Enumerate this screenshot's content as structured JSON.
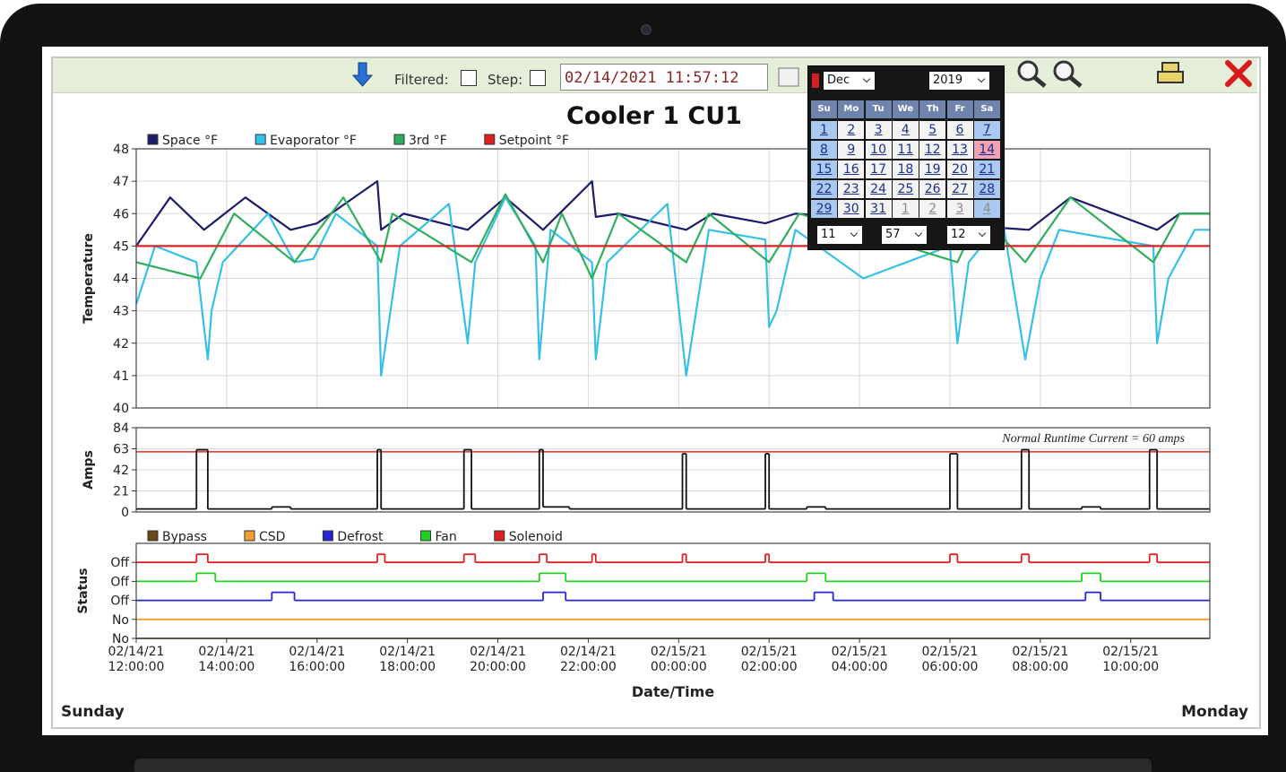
{
  "toolbar": {
    "filtered_label": "Filtered:",
    "step_label": "Step:",
    "datetime": "02/14/2021 11:57:12"
  },
  "calendar": {
    "month": "Dec",
    "year": "2019",
    "weekdays": [
      "Su",
      "Mo",
      "Tu",
      "We",
      "Th",
      "Fr",
      "Sa"
    ],
    "days": [
      [
        1,
        2,
        3,
        4,
        5,
        6,
        7
      ],
      [
        8,
        9,
        10,
        11,
        12,
        13,
        14
      ],
      [
        15,
        16,
        17,
        18,
        19,
        20,
        21
      ],
      [
        22,
        23,
        24,
        25,
        26,
        27,
        28
      ],
      [
        29,
        30,
        31,
        1,
        2,
        3,
        4
      ]
    ],
    "hour": "11",
    "minute": "57",
    "second": "12"
  },
  "chart_data": [
    {
      "type": "line",
      "title": "Cooler 1 CU1",
      "y_label": "Temperature",
      "ylim": [
        40,
        48
      ],
      "yticks": [
        40,
        41,
        42,
        43,
        44,
        45,
        46,
        47,
        48
      ],
      "grid": true,
      "xgrid": true,
      "legend": "top-left",
      "series": [
        {
          "name": "Space °F",
          "color": "#1c1c6b",
          "x": [
            "02/14/21 12:00:00",
            "02/14/21 12:45:00",
            "02/14/21 13:30:00",
            "02/14/21 14:25:00",
            "02/14/21 15:25:00",
            "02/14/21 16:00:00",
            "02/14/21 17:20:00",
            "02/14/21 17:25:00",
            "02/14/21 17:55:00",
            "02/14/21 19:20:00",
            "02/14/21 20:10:00",
            "02/14/21 21:00:00",
            "02/14/21 22:05:00",
            "02/14/21 22:10:00",
            "02/14/21 22:40:00",
            "02/15/21 00:10:00",
            "02/15/21 00:45:00",
            "02/15/21 01:55:00",
            "02/15/21 02:35:00",
            "02/15/21 07:45:00",
            "02/15/21 08:40:00",
            "02/15/21 10:35:00",
            "02/15/21 11:05:00",
            "02/15/21 11:45:00"
          ],
          "values": [
            45,
            46.5,
            45.5,
            46.5,
            45.5,
            45.7,
            47,
            45.5,
            46,
            45.5,
            46.5,
            45.5,
            47,
            45.9,
            46,
            45.5,
            46,
            45.7,
            46,
            45.5,
            46.5,
            45.5,
            46,
            46
          ]
        },
        {
          "name": "Evaporator °F",
          "color": "#35c0e8",
          "x": [
            "02/14/21 12:00:00",
            "02/14/21 12:25:00",
            "02/14/21 13:20:00",
            "02/14/21 13:35:00",
            "02/14/21 13:40:00",
            "02/14/21 13:55:00",
            "02/14/21 14:55:00",
            "02/14/21 15:30:00",
            "02/14/21 15:55:00",
            "02/14/21 16:25:00",
            "02/14/21 17:20:00",
            "02/14/21 17:25:00",
            "02/14/21 17:50:00",
            "02/14/21 18:55:00",
            "02/14/21 19:20:00",
            "02/14/21 19:30:00",
            "02/14/21 20:10:00",
            "02/14/21 20:50:00",
            "02/14/21 20:55:00",
            "02/14/21 21:10:00",
            "02/14/21 22:05:00",
            "02/14/21 22:10:00",
            "02/14/21 22:25:00",
            "02/14/21 23:45:00",
            "02/15/21 00:10:00",
            "02/15/21 00:40:00",
            "02/15/21 01:55:00",
            "02/15/21 02:00:00",
            "02/15/21 02:10:00",
            "02/15/21 02:35:00",
            "02/15/21 04:05:00",
            "02/15/21 06:00:00",
            "02/15/21 06:10:00",
            "02/15/21 06:25:00",
            "02/15/21 07:10:00",
            "02/15/21 07:40:00",
            "02/15/21 08:00:00",
            "02/15/21 08:25:00",
            "02/15/21 10:30:00",
            "02/15/21 10:35:00",
            "02/15/21 10:50:00",
            "02/15/21 11:25:00",
            "02/15/21 11:45:00"
          ],
          "values": [
            43.2,
            45,
            44.5,
            41.5,
            43,
            44.5,
            46,
            44.5,
            44.6,
            46,
            45,
            41,
            45,
            46.3,
            42,
            44.5,
            46.5,
            45,
            41.5,
            45.5,
            44.5,
            41.5,
            44.5,
            46.3,
            41,
            45.5,
            45.2,
            42.5,
            43,
            45.5,
            44,
            45,
            42,
            44.5,
            45.8,
            41.5,
            44,
            45.5,
            45,
            42,
            44,
            45.5,
            45.5
          ]
        },
        {
          "name": "3rd °F",
          "color": "#2fae5e",
          "x": [
            "02/14/21 12:00:00",
            "02/14/21 13:25:00",
            "02/14/21 14:10:00",
            "02/14/21 15:30:00",
            "02/14/21 16:35:00",
            "02/14/21 17:25:00",
            "02/14/21 17:40:00",
            "02/14/21 19:25:00",
            "02/14/21 20:10:00",
            "02/14/21 21:00:00",
            "02/14/21 21:25:00",
            "02/14/21 22:05:00",
            "02/14/21 22:40:00",
            "02/15/21 00:10:00",
            "02/15/21 00:40:00",
            "02/15/21 02:00:00",
            "02/15/21 02:40:00",
            "02/15/21 06:10:00",
            "02/15/21 06:40:00",
            "02/15/21 07:40:00",
            "02/15/21 08:40:00",
            "02/15/21 10:30:00",
            "02/15/21 11:05:00",
            "02/15/21 11:45:00"
          ],
          "values": [
            44.5,
            44,
            46,
            44.5,
            46.5,
            44.5,
            46,
            44.5,
            46.6,
            44.5,
            46,
            44,
            46,
            44.5,
            46,
            44.5,
            46,
            44.5,
            46,
            44.5,
            46.5,
            44.5,
            46,
            46
          ]
        },
        {
          "name": "Setpoint °F",
          "color": "#e02020",
          "x": [
            "02/14/21 12:00:00",
            "02/15/21 11:45:00"
          ],
          "values": [
            45,
            45
          ]
        }
      ]
    },
    {
      "type": "step",
      "y_label": "Amps",
      "ylim": [
        0,
        84
      ],
      "yticks": [
        0,
        21,
        42,
        63,
        84
      ],
      "grid": true,
      "annotation": "Normal Runtime Current = 60 amps",
      "reference_line": {
        "value": 60,
        "color": "#e03020"
      },
      "series": [
        {
          "color": "#111111",
          "x": [
            "02/14/21 12:00:00",
            "02/14/21 13:20:00",
            "02/14/21 13:35:00",
            "02/14/21 15:00:00",
            "02/14/21 15:25:00",
            "02/14/21 17:20:00",
            "02/14/21 17:25:00",
            "02/14/21 19:15:00",
            "02/14/21 19:25:00",
            "02/14/21 20:55:00",
            "02/14/21 21:00:00",
            "02/14/21 21:35:00",
            "02/15/21 00:05:00",
            "02/15/21 00:10:00",
            "02/15/21 01:55:00",
            "02/15/21 02:00:00",
            "02/15/21 02:50:00",
            "02/15/21 03:15:00",
            "02/15/21 06:00:00",
            "02/15/21 06:10:00",
            "02/15/21 07:35:00",
            "02/15/21 07:45:00",
            "02/15/21 08:55:00",
            "02/15/21 09:20:00",
            "02/15/21 10:25:00",
            "02/15/21 10:35:00"
          ],
          "values": [
            3,
            62,
            3,
            5,
            3,
            62,
            3,
            62,
            3,
            62,
            5,
            3,
            58,
            3,
            58,
            3,
            5,
            3,
            58,
            3,
            62,
            3,
            5,
            3,
            62,
            3
          ]
        }
      ]
    },
    {
      "type": "status",
      "y_label": "Status",
      "x_label": "Date/Time",
      "legend": "top-left",
      "ylim": [
        0,
        5
      ],
      "yticks": [
        {
          "value": 0,
          "label": "No"
        },
        {
          "value": 1,
          "label": "No"
        },
        {
          "value": 2,
          "label": "Off"
        },
        {
          "value": 3,
          "label": "Off"
        },
        {
          "value": 4,
          "label": "Off"
        }
      ],
      "xlim": [
        "02/14/21 12:00:00",
        "02/15/21 11:45:00"
      ],
      "xticks": [
        "02/14/21 12:00:00",
        "02/14/21 14:00:00",
        "02/14/21 16:00:00",
        "02/14/21 18:00:00",
        "02/14/21 20:00:00",
        "02/14/21 22:00:00",
        "02/15/21 00:00:00",
        "02/15/21 02:00:00",
        "02/15/21 04:00:00",
        "02/15/21 06:00:00",
        "02/15/21 08:00:00",
        "02/15/21 10:00:00"
      ],
      "series": [
        {
          "name": "Bypass",
          "color": "#6b4a1a",
          "x": [
            "02/14/21 12:00:00"
          ],
          "values": [
            0
          ]
        },
        {
          "name": "CSD",
          "color": "#f0a030",
          "x": [
            "02/14/21 12:00:00"
          ],
          "values": [
            0
          ]
        },
        {
          "name": "Defrost",
          "color": "#2424d8",
          "x": [
            "02/14/21 12:00:00",
            "02/14/21 15:00:00",
            "02/14/21 15:30:00",
            "02/14/21 21:00:00",
            "02/14/21 21:30:00",
            "02/15/21 03:00:00",
            "02/15/21 03:25:00",
            "02/15/21 09:00:00",
            "02/15/21 09:20:00"
          ],
          "values": [
            0,
            1,
            0,
            1,
            0,
            1,
            0,
            1,
            0
          ]
        },
        {
          "name": "Fan",
          "color": "#22d022",
          "x": [
            "02/14/21 12:00:00",
            "02/14/21 13:20:00",
            "02/14/21 13:45:00",
            "02/14/21 20:55:00",
            "02/14/21 21:30:00",
            "02/15/21 02:50:00",
            "02/15/21 03:15:00",
            "02/15/21 08:55:00",
            "02/15/21 09:20:00"
          ],
          "values": [
            0,
            1,
            0,
            1,
            0,
            1,
            0,
            1,
            0
          ]
        },
        {
          "name": "Solenoid",
          "color": "#e02020",
          "x": [
            "02/14/21 12:00:00",
            "02/14/21 13:20:00",
            "02/14/21 13:35:00",
            "02/14/21 17:20:00",
            "02/14/21 17:30:00",
            "02/14/21 19:15:00",
            "02/14/21 19:30:00",
            "02/14/21 20:55:00",
            "02/14/21 21:05:00",
            "02/14/21 22:05:00",
            "02/14/21 22:10:00",
            "02/15/21 00:05:00",
            "02/15/21 00:10:00",
            "02/15/21 01:55:00",
            "02/15/21 02:00:00",
            "02/15/21 06:00:00",
            "02/15/21 06:10:00",
            "02/15/21 07:35:00",
            "02/15/21 07:45:00",
            "02/15/21 10:25:00",
            "02/15/21 10:35:00"
          ],
          "values": [
            0,
            1,
            0,
            1,
            0,
            1,
            0,
            1,
            0,
            1,
            0,
            1,
            0,
            1,
            0,
            1,
            0,
            1,
            0,
            1,
            0
          ]
        }
      ]
    }
  ],
  "footer": {
    "left": "Sunday",
    "right": "Monday"
  }
}
